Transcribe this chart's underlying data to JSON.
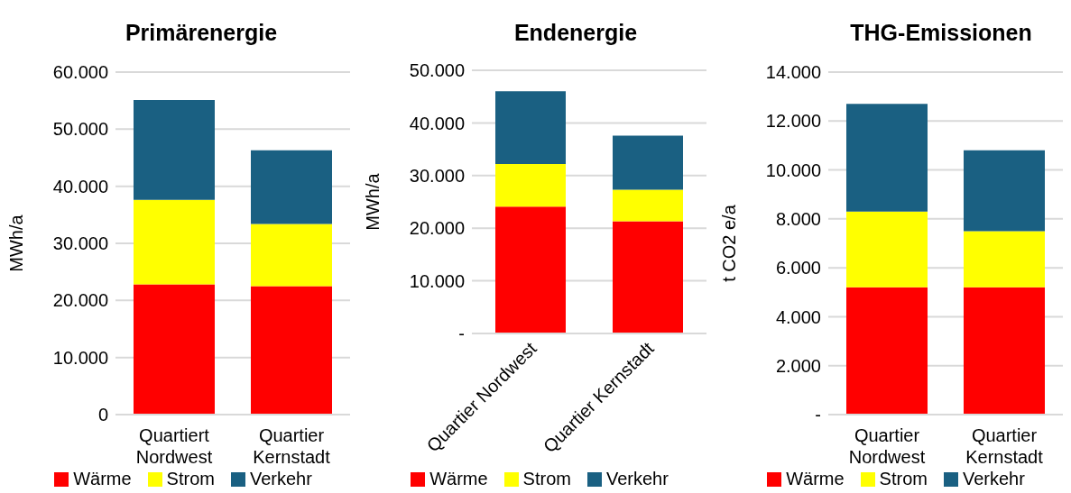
{
  "chart_data": [
    {
      "type": "bar",
      "title": "Primärenergie",
      "ylabel": "MWh/a",
      "categories": [
        "Quartiert Nordwest",
        "Quartier Kernstadt"
      ],
      "stacked": true,
      "grid": "y",
      "legend": "bottom",
      "ylim": [
        0,
        60000
      ],
      "yticks": [
        0,
        {
          "value": 10000,
          "label": "10.000"
        },
        {
          "value": 20000,
          "label": "20.000"
        },
        {
          "value": 30000,
          "label": "30.000"
        },
        {
          "value": 40000,
          "label": "40.000"
        },
        {
          "value": 50000,
          "label": "50.000"
        },
        {
          "value": 60000,
          "label": "60.000"
        }
      ],
      "series": [
        {
          "name": "Wärme",
          "color": "#ff0000",
          "values": [
            22800,
            22500
          ]
        },
        {
          "name": "Strom",
          "color": "#ffff00",
          "values": [
            14800,
            10900
          ]
        },
        {
          "name": "Verkehr",
          "color": "#1a6082",
          "values": [
            17500,
            12900
          ]
        }
      ]
    },
    {
      "type": "bar",
      "title": "Endenergie",
      "ylabel": "MWh/a",
      "categories": [
        "Quartier Nordwest",
        "Quartier Kernstadt"
      ],
      "stacked": true,
      "grid": "y",
      "legend": "bottom",
      "ylim": [
        0,
        50000
      ],
      "yticks": [
        {
          "value": 0,
          "label": "-"
        },
        {
          "value": 10000,
          "label": "10.000"
        },
        {
          "value": 20000,
          "label": "20.000"
        },
        {
          "value": 30000,
          "label": "30.000"
        },
        {
          "value": 40000,
          "label": "40.000"
        },
        {
          "value": 50000,
          "label": "50.000"
        }
      ],
      "series": [
        {
          "name": "Wärme",
          "color": "#ff0000",
          "values": [
            24100,
            21300
          ]
        },
        {
          "name": "Strom",
          "color": "#ffff00",
          "values": [
            8100,
            6000
          ]
        },
        {
          "name": "Verkehr",
          "color": "#1a6082",
          "values": [
            13800,
            10300
          ]
        }
      ]
    },
    {
      "type": "bar",
      "title": "THG-Emissionen",
      "ylabel": "t CO2 e/a",
      "categories": [
        "Quartier Nordwest",
        "Quartier Kernstadt"
      ],
      "stacked": true,
      "grid": "y",
      "legend": "bottom",
      "ylim": [
        0,
        14000
      ],
      "yticks": [
        {
          "value": 0,
          "label": "-"
        },
        {
          "value": 2000,
          "label": "2.000"
        },
        {
          "value": 4000,
          "label": "4.000"
        },
        {
          "value": 6000,
          "label": "6.000"
        },
        {
          "value": 8000,
          "label": "8.000"
        },
        {
          "value": 10000,
          "label": "10.000"
        },
        {
          "value": 12000,
          "label": "12.000"
        },
        {
          "value": 14000,
          "label": "14.000"
        }
      ],
      "series": [
        {
          "name": "Wärme",
          "color": "#ff0000",
          "values": [
            5200,
            5200
          ]
        },
        {
          "name": "Strom",
          "color": "#ffff00",
          "values": [
            3100,
            2300
          ]
        },
        {
          "name": "Verkehr",
          "color": "#1a6082",
          "values": [
            4400,
            3300
          ]
        }
      ]
    }
  ]
}
